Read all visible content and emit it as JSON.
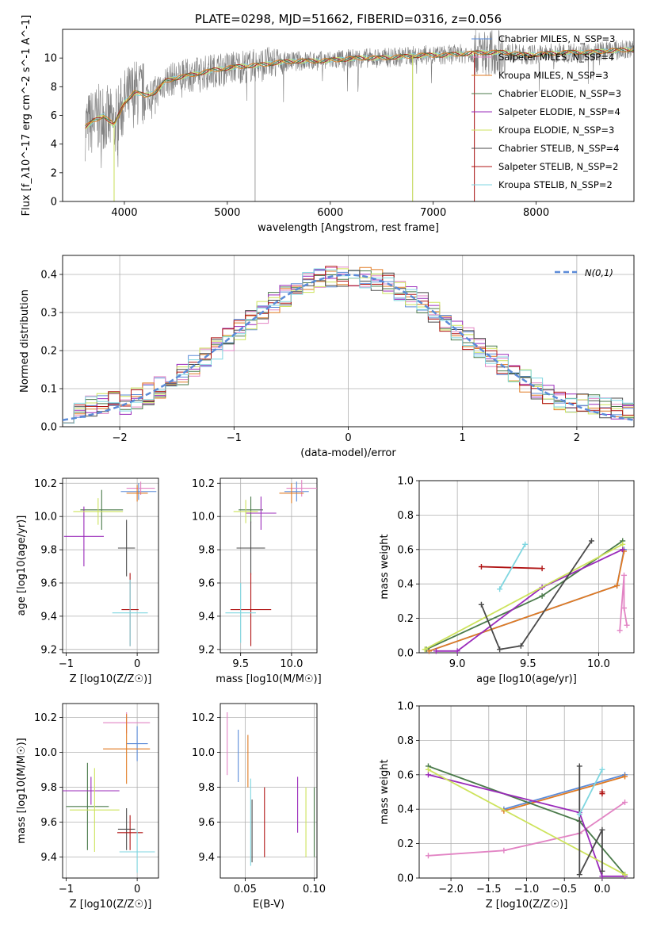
{
  "colors": {
    "Chabrier MILES": "#5b8bd8",
    "Salpeter MILES": "#e284c4",
    "Kroupa MILES": "#e07a22",
    "Chabrier ELODIE": "#4a7a4a",
    "Salpeter ELODIE": "#9a2aba",
    "Kroupa ELODIE": "#cde35c",
    "Chabrier STELIB": "#4a4a4a",
    "Salpeter STELIB": "#b01414",
    "Kroupa STELIB": "#7fd6e0",
    "data": "#808080",
    "normal": "#5b8bd8"
  },
  "chart_data": [
    {
      "id": "spectrum",
      "type": "line",
      "title": "PLATE=0298, MJD=51662, FIBERID=0316, z=0.056",
      "xlabel": "wavelength [Angstrom, rest frame]",
      "ylabel": "Flux [f_λ10^-17 erg cm^-2 s^-1 A^-1]",
      "xlim": [
        3400,
        8950
      ],
      "ylim": [
        0,
        12
      ],
      "xticks": [
        "4000",
        "5000",
        "6000",
        "7000",
        "8000"
      ],
      "yticks": [
        "0",
        "2",
        "4",
        "6",
        "8",
        "10"
      ],
      "grid": false,
      "legend": "top-right",
      "legend_entries": [
        {
          "label": "Chabrier MILES, N_SSP=3",
          "color_key": "Chabrier MILES"
        },
        {
          "label": "Salpeter MILES, N_SSP=4",
          "color_key": "Salpeter MILES"
        },
        {
          "label": "Kroupa MILES, N_SSP=3",
          "color_key": "Kroupa MILES"
        },
        {
          "label": "Chabrier ELODIE, N_SSP=3",
          "color_key": "Chabrier ELODIE"
        },
        {
          "label": "Salpeter ELODIE, N_SSP=4",
          "color_key": "Salpeter ELODIE"
        },
        {
          "label": "Kroupa ELODIE, N_SSP=3",
          "color_key": "Kroupa ELODIE"
        },
        {
          "label": "Chabrier STELIB, N_SSP=4",
          "color_key": "Chabrier STELIB"
        },
        {
          "label": "Salpeter STELIB, N_SSP=2",
          "color_key": "Salpeter STELIB"
        },
        {
          "label": "Kroupa STELIB, N_SSP=2",
          "color_key": "Kroupa STELIB"
        }
      ],
      "continuum": [
        [
          3620,
          5.2
        ],
        [
          3700,
          5.6
        ],
        [
          3800,
          6.0
        ],
        [
          3900,
          5.3
        ],
        [
          4000,
          6.9
        ],
        [
          4100,
          7.6
        ],
        [
          4200,
          7.4
        ],
        [
          4300,
          7.6
        ],
        [
          4400,
          8.4
        ],
        [
          4500,
          8.6
        ],
        [
          4700,
          8.9
        ],
        [
          4900,
          9.2
        ],
        [
          5100,
          9.4
        ],
        [
          5300,
          9.5
        ],
        [
          5500,
          9.7
        ],
        [
          5700,
          9.8
        ],
        [
          5900,
          9.8
        ],
        [
          6100,
          9.9
        ],
        [
          6300,
          10.0
        ],
        [
          6500,
          10.0
        ],
        [
          6700,
          10.1
        ],
        [
          6900,
          10.2
        ],
        [
          7100,
          10.2
        ],
        [
          7300,
          10.3
        ],
        [
          7500,
          10.4
        ],
        [
          7700,
          10.4
        ],
        [
          7900,
          10.2
        ],
        [
          8100,
          10.3
        ],
        [
          8300,
          10.4
        ],
        [
          8500,
          10.4
        ],
        [
          8700,
          10.5
        ],
        [
          8950,
          10.6
        ]
      ],
      "dips": [
        [
          3900,
          0.0
        ],
        [
          3935,
          3.2
        ],
        [
          4300,
          6.1
        ],
        [
          5270,
          0.0
        ],
        [
          6800,
          0.0
        ],
        [
          7400,
          0.0
        ]
      ]
    },
    {
      "id": "residuals",
      "type": "bar",
      "xlabel": "(data-model)/error",
      "ylabel": "Normed distribution",
      "xlim": [
        -2.5,
        2.5
      ],
      "ylim": [
        0,
        0.45
      ],
      "xticks": [
        -2,
        -1,
        0,
        1,
        2
      ],
      "yticks": [
        0.0,
        0.1,
        0.2,
        0.3,
        0.4
      ],
      "grid": true,
      "legend": "top-right",
      "legend_label": "N(0,1)",
      "bin_width": 0.1,
      "bin_start": -2.5,
      "base_hist": [
        0.045,
        0.045,
        0.04,
        0.038,
        0.04,
        0.045,
        0.05,
        0.055,
        0.06,
        0.068,
        0.078,
        0.088,
        0.098,
        0.11,
        0.128,
        0.145,
        0.16,
        0.176,
        0.19,
        0.21,
        0.225,
        0.24,
        0.258,
        0.272,
        0.288,
        0.302,
        0.318,
        0.332,
        0.346,
        0.356,
        0.366,
        0.376,
        0.384,
        0.39,
        0.395,
        0.398,
        0.4,
        0.398,
        0.395,
        0.39,
        0.384,
        0.376,
        0.366,
        0.356,
        0.346,
        0.332,
        0.318,
        0.302,
        0.288,
        0.272,
        0.258,
        0.24,
        0.225,
        0.21,
        0.19,
        0.176,
        0.16,
        0.145,
        0.128,
        0.11,
        0.098,
        0.088,
        0.078,
        0.068,
        0.06,
        0.055,
        0.05,
        0.045,
        0.04,
        0.038,
        0.04,
        0.045,
        0.042,
        0.038,
        0.04,
        0.045,
        0.045,
        0.04,
        0.035,
        0.03,
        0.025,
        0.04,
        0.045,
        0.05,
        0.06,
        0.07,
        0.08,
        0.08,
        0.07,
        0.065,
        0.06,
        0.055,
        0.05,
        0.04,
        0.04,
        0.035,
        0.03,
        0.03,
        0.03,
        0.03
      ]
    },
    {
      "id": "age_vs_z",
      "type": "scatter",
      "xlabel": "Z [log10(Z/Z☉)]",
      "ylabel": "age [log10(age/yr)]",
      "xlim": [
        -1.05,
        0.3
      ],
      "ylim": [
        9.18,
        10.23
      ],
      "xticks": [
        -1,
        0
      ],
      "yticks": [
        9.2,
        9.4,
        9.6,
        9.8,
        10.0,
        10.2
      ],
      "grid": true,
      "points": [
        {
          "color_key": "Chabrier MILES",
          "x": 0.02,
          "y": 10.15,
          "xerr": 0.25,
          "yerr": 0.05
        },
        {
          "color_key": "Salpeter MILES",
          "x": 0.05,
          "y": 10.17,
          "xerr": 0.2,
          "yerr": 0.04
        },
        {
          "color_key": "Kroupa MILES",
          "x": 0.0,
          "y": 10.14,
          "xerr": 0.15,
          "yerr": 0.05
        },
        {
          "color_key": "Chabrier ELODIE",
          "x": -0.5,
          "y": 10.04,
          "xerr": 0.3,
          "yerr": 0.12
        },
        {
          "color_key": "Salpeter ELODIE",
          "x": -0.75,
          "y": 9.88,
          "xerr": 0.28,
          "yerr": 0.18
        },
        {
          "color_key": "Kroupa ELODIE",
          "x": -0.55,
          "y": 10.03,
          "xerr": 0.35,
          "yerr": 0.08
        },
        {
          "color_key": "Chabrier STELIB",
          "x": -0.15,
          "y": 9.81,
          "xerr": 0.12,
          "yerr": 0.17
        },
        {
          "color_key": "Salpeter STELIB",
          "x": -0.1,
          "y": 9.44,
          "xerr": 0.12,
          "yerr": 0.22
        },
        {
          "color_key": "Kroupa STELIB",
          "x": -0.1,
          "y": 9.42,
          "xerr": 0.25,
          "yerr": 0.2
        }
      ]
    },
    {
      "id": "age_vs_mass",
      "type": "scatter",
      "xlabel": "mass [log10(M/M☉)]",
      "ylabel": "",
      "xlim": [
        9.3,
        10.25
      ],
      "ylim": [
        9.18,
        10.23
      ],
      "xticks": [
        9.5,
        10.0
      ],
      "yticks": [
        9.2,
        9.4,
        9.6,
        9.8,
        10.0,
        10.2
      ],
      "grid": true,
      "points": [
        {
          "color_key": "Chabrier MILES",
          "x": 10.05,
          "y": 10.15,
          "xerr": 0.12,
          "yerr": 0.06
        },
        {
          "color_key": "Salpeter MILES",
          "x": 10.1,
          "y": 10.17,
          "xerr": 0.15,
          "yerr": 0.05
        },
        {
          "color_key": "Kroupa MILES",
          "x": 10.0,
          "y": 10.14,
          "xerr": 0.12,
          "yerr": 0.06
        },
        {
          "color_key": "Chabrier ELODIE",
          "x": 9.6,
          "y": 10.04,
          "xerr": 0.12,
          "yerr": 0.08
        },
        {
          "color_key": "Salpeter ELODIE",
          "x": 9.7,
          "y": 10.02,
          "xerr": 0.15,
          "yerr": 0.1
        },
        {
          "color_key": "Kroupa ELODIE",
          "x": 9.55,
          "y": 10.03,
          "xerr": 0.12,
          "yerr": 0.07
        },
        {
          "color_key": "Chabrier STELIB",
          "x": 9.6,
          "y": 9.81,
          "xerr": 0.14,
          "yerr": 0.16
        },
        {
          "color_key": "Salpeter STELIB",
          "x": 9.6,
          "y": 9.44,
          "xerr": 0.2,
          "yerr": 0.22
        },
        {
          "color_key": "Kroupa STELIB",
          "x": 9.5,
          "y": 9.42,
          "xerr": 0.15,
          "yerr": 0.18
        }
      ]
    },
    {
      "id": "weight_vs_age",
      "type": "line",
      "xlabel": "age [log10(age/yr)]",
      "ylabel": "mass weight",
      "xlim": [
        8.73,
        10.25
      ],
      "ylim": [
        0.0,
        1.0
      ],
      "xticks": [
        9.0,
        9.5,
        10.0
      ],
      "yticks": [
        0.0,
        0.2,
        0.4,
        0.6,
        0.8,
        1.0
      ],
      "grid": true,
      "series": [
        {
          "color_key": "Chabrier MILES",
          "points": [
            [
              8.8,
              0.01
            ],
            [
              10.13,
              0.39
            ],
            [
              10.18,
              0.6
            ]
          ]
        },
        {
          "color_key": "Salpeter MILES",
          "points": [
            [
              10.15,
              0.13
            ],
            [
              10.18,
              0.45
            ],
            [
              10.18,
              0.26
            ],
            [
              10.2,
              0.16
            ]
          ]
        },
        {
          "color_key": "Kroupa MILES",
          "points": [
            [
              8.8,
              0.01
            ],
            [
              10.13,
              0.39
            ],
            [
              10.18,
              0.59
            ]
          ]
        },
        {
          "color_key": "Chabrier ELODIE",
          "points": [
            [
              8.78,
              0.02
            ],
            [
              9.6,
              0.33
            ],
            [
              10.17,
              0.65
            ]
          ]
        },
        {
          "color_key": "Salpeter ELODIE",
          "points": [
            [
              8.85,
              0.01
            ],
            [
              9.0,
              0.01
            ],
            [
              9.6,
              0.38
            ],
            [
              10.17,
              0.6
            ]
          ]
        },
        {
          "color_key": "Kroupa ELODIE",
          "points": [
            [
              8.77,
              0.02
            ],
            [
              10.17,
              0.63
            ]
          ]
        },
        {
          "color_key": "Chabrier STELIB",
          "points": [
            [
              9.17,
              0.28
            ],
            [
              9.3,
              0.02
            ],
            [
              9.45,
              0.04
            ],
            [
              9.95,
              0.65
            ]
          ]
        },
        {
          "color_key": "Salpeter STELIB",
          "points": [
            [
              9.17,
              0.5
            ],
            [
              9.6,
              0.49
            ]
          ]
        },
        {
          "color_key": "Kroupa STELIB",
          "points": [
            [
              9.3,
              0.37
            ],
            [
              9.48,
              0.63
            ]
          ]
        }
      ]
    },
    {
      "id": "mass_vs_z",
      "type": "scatter",
      "xlabel": "Z [log10(Z/Z☉)]",
      "ylabel": "mass [log10(M/M☉)]",
      "xlim": [
        -1.05,
        0.3
      ],
      "ylim": [
        9.28,
        10.28
      ],
      "xticks": [
        -1,
        0
      ],
      "yticks": [
        9.4,
        9.6,
        9.8,
        10.0,
        10.2
      ],
      "grid": true,
      "points": [
        {
          "color_key": "Chabrier MILES",
          "x": 0.0,
          "y": 10.05,
          "xerr": 0.15,
          "yerr": 0.1
        },
        {
          "color_key": "Salpeter MILES",
          "x": -0.15,
          "y": 10.17,
          "xerr": 0.33,
          "yerr": 0.06
        },
        {
          "color_key": "Kroupa MILES",
          "x": -0.15,
          "y": 10.02,
          "xerr": 0.33,
          "yerr": 0.2
        },
        {
          "color_key": "Chabrier ELODIE",
          "x": -0.7,
          "y": 9.69,
          "xerr": 0.3,
          "yerr": 0.25
        },
        {
          "color_key": "Salpeter ELODIE",
          "x": -0.65,
          "y": 9.78,
          "xerr": 0.4,
          "yerr": 0.08
        },
        {
          "color_key": "Kroupa ELODIE",
          "x": -0.6,
          "y": 9.67,
          "xerr": 0.35,
          "yerr": 0.24
        },
        {
          "color_key": "Chabrier STELIB",
          "x": -0.15,
          "y": 9.56,
          "xerr": 0.12,
          "yerr": 0.12
        },
        {
          "color_key": "Salpeter STELIB",
          "x": -0.1,
          "y": 9.54,
          "xerr": 0.18,
          "yerr": 0.1
        },
        {
          "color_key": "Kroupa STELIB",
          "x": 0.0,
          "y": 9.43,
          "xerr": 0.25,
          "yerr": 0.12
        }
      ]
    },
    {
      "id": "mass_vs_ebv",
      "type": "scatter",
      "xlabel": "E(B-V)",
      "ylabel": "",
      "xlim": [
        0.032,
        0.102
      ],
      "ylim": [
        9.28,
        10.28
      ],
      "xticks": [
        0.05,
        0.1
      ],
      "yticks": [
        9.4,
        9.6,
        9.8,
        10.0,
        10.2
      ],
      "grid": true,
      "points": [
        {
          "color_key": "Chabrier MILES",
          "x": 0.045,
          "y": 9.98,
          "xerr": 0,
          "yerr": 0.15
        },
        {
          "color_key": "Salpeter MILES",
          "x": 0.037,
          "y": 10.05,
          "xerr": 0,
          "yerr": 0.18
        },
        {
          "color_key": "Kroupa MILES",
          "x": 0.052,
          "y": 9.95,
          "xerr": 0,
          "yerr": 0.15
        },
        {
          "color_key": "Chabrier ELODIE",
          "x": 0.1,
          "y": 9.6,
          "xerr": 0,
          "yerr": 0.2
        },
        {
          "color_key": "Salpeter ELODIE",
          "x": 0.088,
          "y": 9.7,
          "xerr": 0,
          "yerr": 0.16
        },
        {
          "color_key": "Kroupa ELODIE",
          "x": 0.094,
          "y": 9.6,
          "xerr": 0,
          "yerr": 0.2
        },
        {
          "color_key": "Chabrier STELIB",
          "x": 0.055,
          "y": 9.55,
          "xerr": 0,
          "yerr": 0.18
        },
        {
          "color_key": "Salpeter STELIB",
          "x": 0.064,
          "y": 9.6,
          "xerr": 0,
          "yerr": 0.2
        },
        {
          "color_key": "Kroupa STELIB",
          "x": 0.054,
          "y": 9.6,
          "xerr": 0,
          "yerr": 0.25
        }
      ]
    },
    {
      "id": "weight_vs_z",
      "type": "line",
      "xlabel": "Z [log10(Z/Z☉)]",
      "ylabel": "mass weight",
      "xlim": [
        -2.42,
        0.42
      ],
      "ylim": [
        0.0,
        1.0
      ],
      "xticks": [
        -2.0,
        -1.5,
        -1.0,
        -0.5,
        0.0
      ],
      "yticks": [
        0.0,
        0.2,
        0.4,
        0.6,
        0.8,
        1.0
      ],
      "grid": true,
      "series": [
        {
          "color_key": "Chabrier MILES",
          "points": [
            [
              -1.3,
              0.4
            ],
            [
              0.3,
              0.6
            ]
          ]
        },
        {
          "color_key": "Salpeter MILES",
          "points": [
            [
              -2.3,
              0.13
            ],
            [
              -1.3,
              0.16
            ],
            [
              -0.3,
              0.26
            ],
            [
              0.3,
              0.44
            ]
          ]
        },
        {
          "color_key": "Kroupa MILES",
          "points": [
            [
              -1.3,
              0.39
            ],
            [
              0.3,
              0.59
            ]
          ]
        },
        {
          "color_key": "Chabrier ELODIE",
          "points": [
            [
              -2.3,
              0.65
            ],
            [
              -0.3,
              0.33
            ],
            [
              0.3,
              0.02
            ]
          ]
        },
        {
          "color_key": "Salpeter ELODIE",
          "points": [
            [
              -2.3,
              0.6
            ],
            [
              -0.3,
              0.38
            ],
            [
              0.0,
              0.01
            ],
            [
              0.3,
              0.01
            ]
          ]
        },
        {
          "color_key": "Kroupa ELODIE",
          "points": [
            [
              -2.3,
              0.63
            ],
            [
              0.3,
              0.02
            ]
          ]
        },
        {
          "color_key": "Chabrier STELIB",
          "points": [
            [
              -0.3,
              0.65
            ],
            [
              -0.3,
              0.02
            ],
            [
              0.0,
              0.28
            ],
            [
              0.0,
              0.04
            ]
          ]
        },
        {
          "color_key": "Salpeter STELIB",
          "points": [
            [
              0.0,
              0.5
            ],
            [
              0.0,
              0.49
            ]
          ]
        },
        {
          "color_key": "Kroupa STELIB",
          "points": [
            [
              -0.3,
              0.37
            ],
            [
              0.0,
              0.63
            ]
          ]
        }
      ]
    }
  ]
}
